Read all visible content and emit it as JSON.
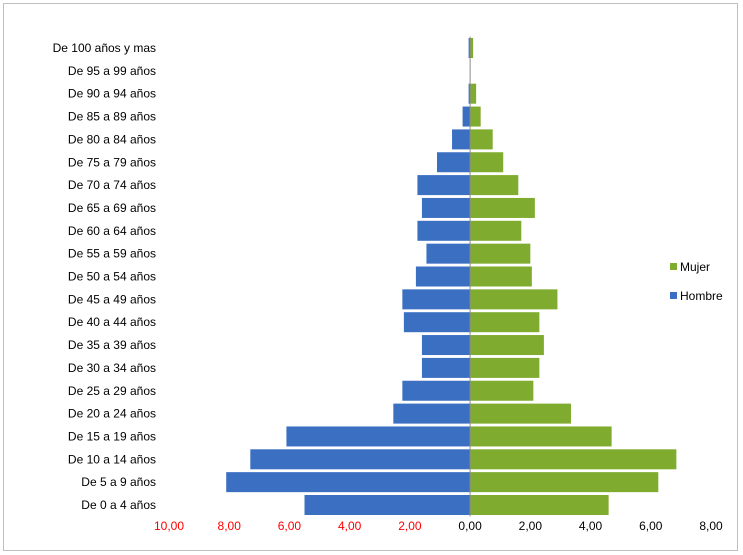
{
  "chart_data": {
    "type": "bar",
    "orientation": "horizontal",
    "title": "",
    "categories": [
      "De 0 a 4 años",
      "De 5 a 9 años",
      "De 10 a 14 años",
      "De 15 a 19 años",
      "De 20 a 24 años",
      "De 25 a 29 años",
      "De 30 a 34 años",
      "De 35 a 39 años",
      "De 40 a 44 años",
      "De 45 a 49 años",
      "De 50 a 54 años",
      "De 55 a 59 años",
      "De 60 a 64 años",
      "De 65 a 69 años",
      "De 70 a 74 años",
      "De 75 a 79 años",
      "De 80 a 84 años",
      "De 85 a 89 años",
      "De 90 a 94 años",
      "De 95 a 99 años",
      "De 100 años y mas"
    ],
    "series": [
      {
        "name": "Mujer",
        "color": "#7fab2e",
        "values": [
          4.6,
          6.25,
          6.85,
          4.7,
          3.35,
          2.1,
          2.3,
          2.45,
          2.3,
          2.9,
          2.05,
          2.0,
          1.7,
          2.15,
          1.6,
          1.1,
          0.75,
          0.35,
          0.2,
          0.0,
          0.1
        ]
      },
      {
        "name": "Hombre",
        "color": "#3a6fc2",
        "values": [
          -5.5,
          -8.1,
          -7.3,
          -6.1,
          -2.55,
          -2.25,
          -1.6,
          -1.6,
          -2.2,
          -2.25,
          -1.8,
          -1.45,
          -1.75,
          -1.6,
          -1.75,
          -1.1,
          -0.6,
          -0.25,
          -0.05,
          0.0,
          -0.05
        ]
      }
    ],
    "xlim": [
      -10,
      8
    ],
    "xticks": [
      "10,00",
      "8,00",
      "6,00",
      "4,00",
      "2,00",
      "0,00",
      "2,00",
      "4,00",
      "6,00",
      "8,00"
    ],
    "negative_tick_color": "#ff0000",
    "positive_tick_color": "#000000",
    "xlabel": "",
    "ylabel": "",
    "grid": false,
    "legend": {
      "position": "right",
      "entries": [
        {
          "label": "Mujer",
          "color": "#7fab2e"
        },
        {
          "label": "Hombre",
          "color": "#3a6fc2"
        }
      ]
    }
  }
}
